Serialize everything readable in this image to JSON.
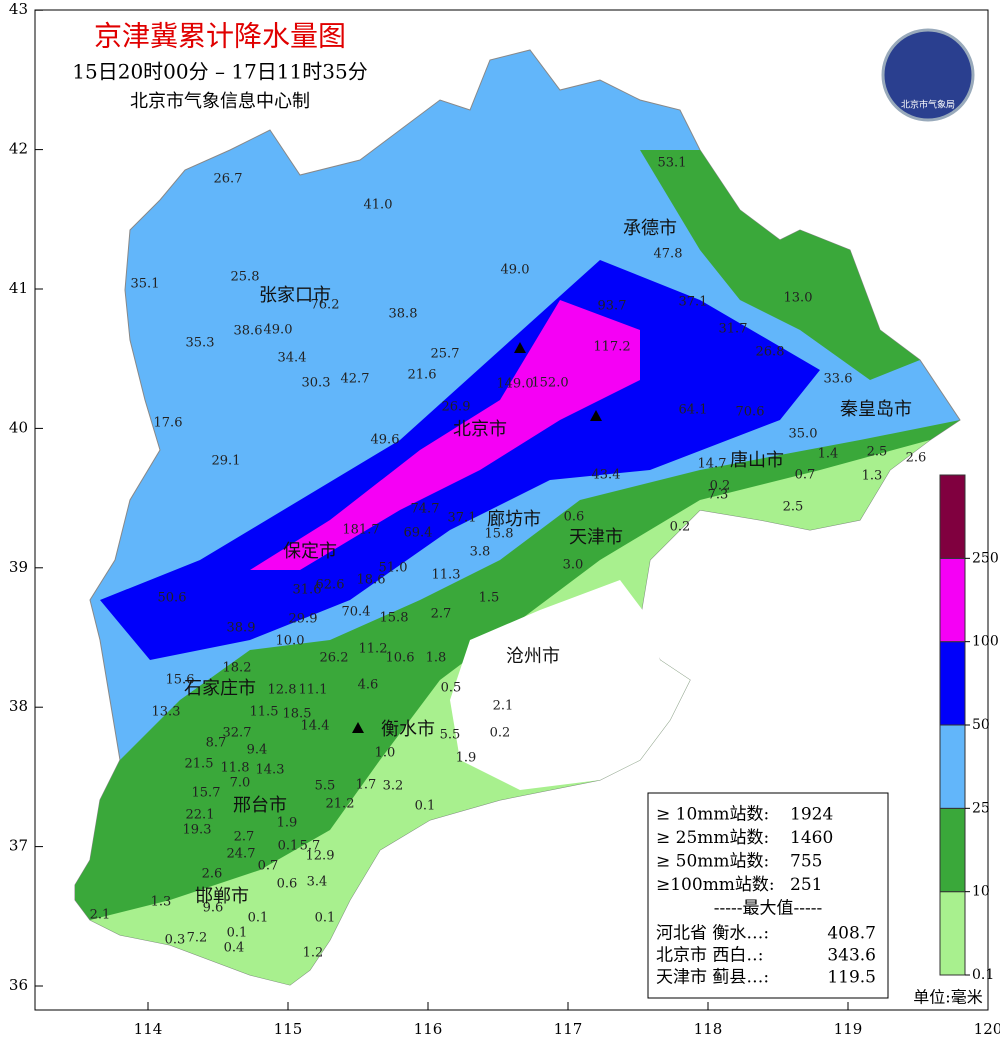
{
  "header": {
    "title": "京津冀累计降水量图",
    "subtitle": "15日20时00分 – 17日11时35分",
    "credit": "北京市气象信息中心制"
  },
  "logo": {
    "label": "北京市气象局"
  },
  "axes": {
    "xticks": [
      114,
      115,
      116,
      117,
      118,
      119,
      120
    ],
    "yticks": [
      36,
      37,
      38,
      39,
      40,
      41,
      42,
      43
    ]
  },
  "cities": [
    "承德市",
    "张家口市",
    "秦皇岛市",
    "北京市",
    "唐山市",
    "廊坊市",
    "天津市",
    "保定市",
    "沧州市",
    "石家庄市",
    "衡水市",
    "邢台市",
    "邯郸市"
  ],
  "stations": [
    "26.7",
    "41.0",
    "53.1",
    "47.8",
    "49.0",
    "35.1",
    "25.8",
    "76.2",
    "38.8",
    "37.1",
    "13.0",
    "38.6",
    "49.0",
    "35.3",
    "34.4",
    "25.7",
    "31.7",
    "26.8",
    "30.3",
    "42.7",
    "21.6",
    "149.0",
    "152.0",
    "93.7",
    "117.2",
    "26.9",
    "64.1",
    "70.6",
    "33.6",
    "17.6",
    "49.6",
    "35.0",
    "29.1",
    "1.4",
    "2.5",
    "2.6",
    "1.3",
    "14.7",
    "0.7",
    "43.4",
    "0.2",
    "7.3",
    "2.5",
    "74.7",
    "37.1",
    "69.4",
    "0.6",
    "15.8",
    "0.2",
    "3.8",
    "181.7",
    "3.0",
    "51.0",
    "11.3",
    "18.6",
    "62.6",
    "31.6",
    "50.6",
    "1.5",
    "70.4",
    "15.8",
    "2.7",
    "29.9",
    "38.9",
    "10.0",
    "11.2",
    "10.6",
    "1.8",
    "26.2",
    "18.2",
    "15.6",
    "12.8",
    "11.1",
    "4.6",
    "0.5",
    "13.3",
    "11.5",
    "18.5",
    "14.4",
    "2.1",
    "32.7",
    "5.5",
    "0.2",
    "8.7",
    "9.4",
    "1.0",
    "1.9",
    "21.5",
    "11.8",
    "14.3",
    "5.5",
    "1.7",
    "3.2",
    "15.7",
    "7.0",
    "21.2",
    "0.1",
    "22.1",
    "19.3",
    "1.9",
    "2.7",
    "0.1",
    "5.7",
    "24.7",
    "12.9",
    "0.7",
    "2.6",
    "0.6",
    "3.4",
    "1.3",
    "9.6",
    "2.1",
    "0.1",
    "0.1",
    "0.1",
    "0.3",
    "7.2",
    "0.4",
    "1.2"
  ],
  "legend": {
    "rows": [
      {
        "label": "≥ 10mm站数:",
        "value": 1924
      },
      {
        "label": "≥ 25mm站数:",
        "value": 1460
      },
      {
        "label": "≥ 50mm站数:",
        "value": 755
      },
      {
        "label": "≥100mm站数:",
        "value": 251
      }
    ],
    "max_title": "-----最大值-----",
    "max_rows": [
      {
        "label": "河北省 衡水…:",
        "value": 408.7
      },
      {
        "label": "北京市 西白‥:",
        "value": 343.6
      },
      {
        "label": "天津市 蓟县…:",
        "value": 119.5
      }
    ]
  },
  "colorbar": {
    "ticks": [
      0.1,
      10,
      25,
      50,
      100,
      250
    ],
    "colors": [
      "#a8f08e",
      "#3aa83a",
      "#62b6fa",
      "#0000fa",
      "#f500f5",
      "#80003f"
    ]
  },
  "unit": "单位:毫米"
}
